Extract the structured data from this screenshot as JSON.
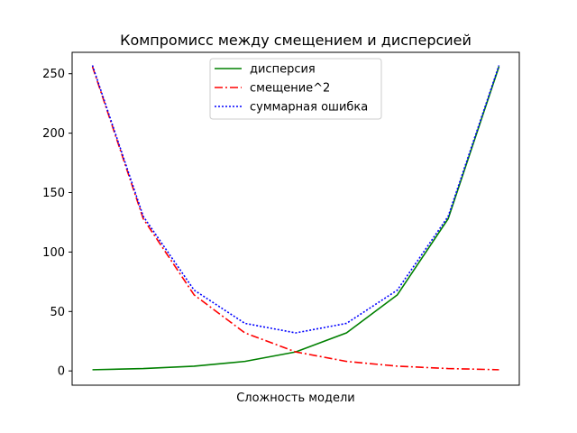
{
  "chart_data": {
    "type": "line",
    "title": "Компромисс между смещением и дисперсией",
    "xlabel": "Сложность модели",
    "ylabel": "",
    "x": [
      0,
      1,
      2,
      3,
      4,
      5,
      6,
      7,
      8
    ],
    "xlim": [
      -0.4,
      8.4
    ],
    "ylim": [
      -12,
      268
    ],
    "yticks": [
      0,
      50,
      100,
      150,
      200,
      250
    ],
    "xticks_visible": false,
    "grid": false,
    "legend_position": "upper center",
    "series": [
      {
        "name": "дисперсия",
        "values": [
          1,
          2,
          4,
          8,
          16,
          32,
          64,
          128,
          256
        ],
        "color": "#008000",
        "style": "solid"
      },
      {
        "name": "смещение^2",
        "values": [
          256,
          128,
          64,
          32,
          16,
          8,
          4,
          2,
          1
        ],
        "color": "#ff0000",
        "style": "dashdot"
      },
      {
        "name": "суммарная ошибка",
        "values": [
          257,
          130,
          68,
          40,
          32,
          40,
          68,
          130,
          257
        ],
        "color": "#0000ff",
        "style": "dotted"
      }
    ]
  }
}
